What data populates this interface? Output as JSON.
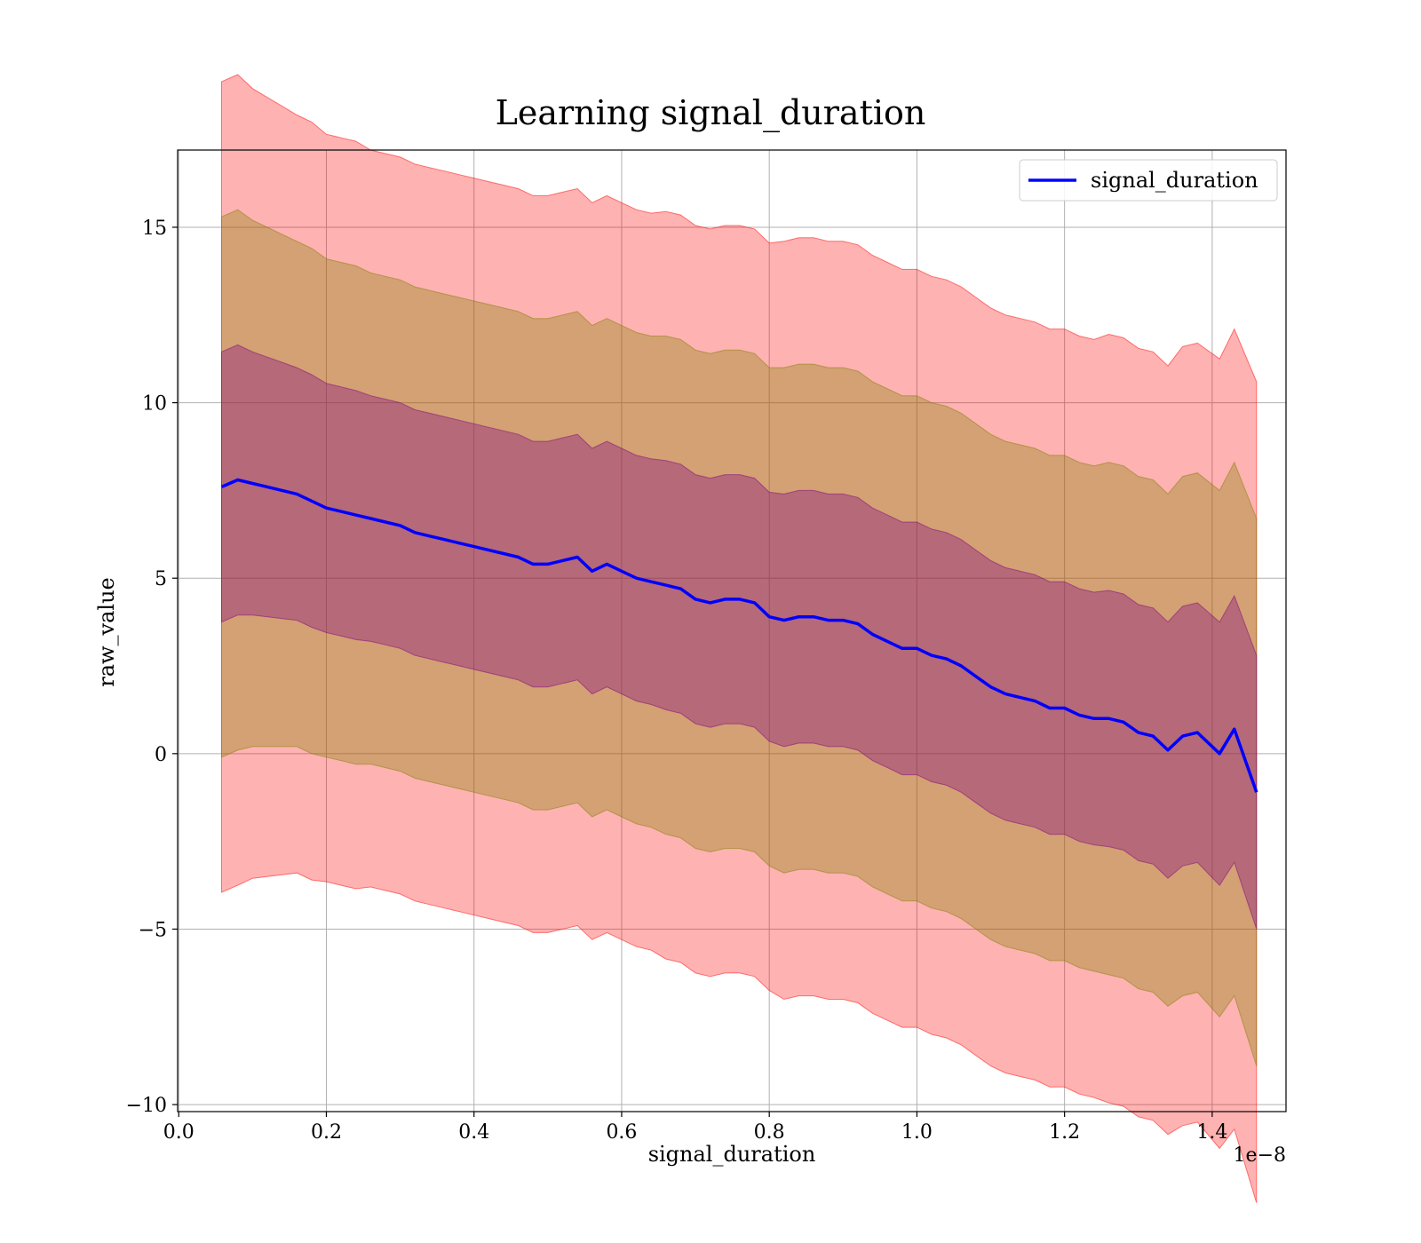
{
  "chart_data": {
    "type": "line",
    "title": "Learning signal_duration",
    "xlabel": "signal_duration",
    "ylabel": "raw_value",
    "x_offset_text": "1e−8",
    "xlim": [
      -0.0015,
      1.5
    ],
    "ylim": [
      -10.2,
      17.2
    ],
    "x_ticks": [
      0.0,
      0.2,
      0.4,
      0.6,
      0.8,
      1.0,
      1.2,
      1.4
    ],
    "x_tick_labels": [
      "0.0",
      "0.2",
      "0.4",
      "0.6",
      "0.8",
      "1.0",
      "1.2",
      "1.4"
    ],
    "y_ticks": [
      -10,
      -5,
      0,
      5,
      10,
      15
    ],
    "y_tick_labels": [
      "−10",
      "−5",
      "0",
      "5",
      "10",
      "15"
    ],
    "grid": true,
    "legend_position": "top-right",
    "colors": {
      "line": "#0000ff",
      "band_outer": "#ff0000",
      "band_middle": "#808000",
      "band_inner": "#800080"
    },
    "bands": [
      {
        "band": "±3σ",
        "color": "#ff0000",
        "opacity": 0.3
      },
      {
        "band": "±2σ",
        "color": "#808000",
        "opacity": 0.35
      },
      {
        "band": "±1σ",
        "color": "#800080",
        "opacity": 0.35
      }
    ],
    "series": [
      {
        "name": "signal_duration",
        "x": [
          0.058,
          0.08,
          0.1,
          0.12,
          0.14,
          0.16,
          0.18,
          0.2,
          0.22,
          0.24,
          0.26,
          0.28,
          0.3,
          0.32,
          0.34,
          0.36,
          0.38,
          0.4,
          0.42,
          0.44,
          0.46,
          0.48,
          0.5,
          0.52,
          0.54,
          0.56,
          0.58,
          0.6,
          0.62,
          0.64,
          0.66,
          0.68,
          0.7,
          0.72,
          0.74,
          0.76,
          0.78,
          0.8,
          0.82,
          0.84,
          0.86,
          0.88,
          0.9,
          0.92,
          0.94,
          0.96,
          0.98,
          1.0,
          1.02,
          1.04,
          1.06,
          1.08,
          1.1,
          1.12,
          1.14,
          1.16,
          1.18,
          1.2,
          1.22,
          1.24,
          1.26,
          1.28,
          1.3,
          1.32,
          1.34,
          1.36,
          1.38,
          1.41,
          1.43,
          1.46
        ],
        "y": [
          7.6,
          7.8,
          7.7,
          7.6,
          7.5,
          7.4,
          7.2,
          7.0,
          6.9,
          6.8,
          6.7,
          6.6,
          6.5,
          6.3,
          6.2,
          6.1,
          6.0,
          5.9,
          5.8,
          5.7,
          5.6,
          5.4,
          5.4,
          5.5,
          5.6,
          5.2,
          5.4,
          5.2,
          5.0,
          4.9,
          4.8,
          4.7,
          4.4,
          4.3,
          4.4,
          4.4,
          4.3,
          3.9,
          3.8,
          3.9,
          3.9,
          3.8,
          3.8,
          3.7,
          3.4,
          3.2,
          3.0,
          3.0,
          2.8,
          2.7,
          2.5,
          2.2,
          1.9,
          1.7,
          1.6,
          1.5,
          1.3,
          1.3,
          1.1,
          1.0,
          1.0,
          0.9,
          0.6,
          0.5,
          0.1,
          0.5,
          0.6,
          0.0,
          0.7,
          -1.1
        ],
        "std": [
          3.85,
          3.85,
          3.75,
          3.7,
          3.65,
          3.6,
          3.6,
          3.55,
          3.55,
          3.55,
          3.5,
          3.5,
          3.5,
          3.5,
          3.5,
          3.5,
          3.5,
          3.5,
          3.5,
          3.5,
          3.5,
          3.5,
          3.5,
          3.5,
          3.5,
          3.5,
          3.5,
          3.5,
          3.5,
          3.5,
          3.55,
          3.55,
          3.55,
          3.55,
          3.55,
          3.55,
          3.55,
          3.55,
          3.6,
          3.6,
          3.6,
          3.6,
          3.6,
          3.6,
          3.6,
          3.6,
          3.6,
          3.6,
          3.6,
          3.6,
          3.6,
          3.6,
          3.6,
          3.6,
          3.6,
          3.6,
          3.6,
          3.6,
          3.6,
          3.6,
          3.65,
          3.65,
          3.65,
          3.65,
          3.65,
          3.7,
          3.7,
          3.75,
          3.8,
          3.9
        ]
      }
    ]
  }
}
